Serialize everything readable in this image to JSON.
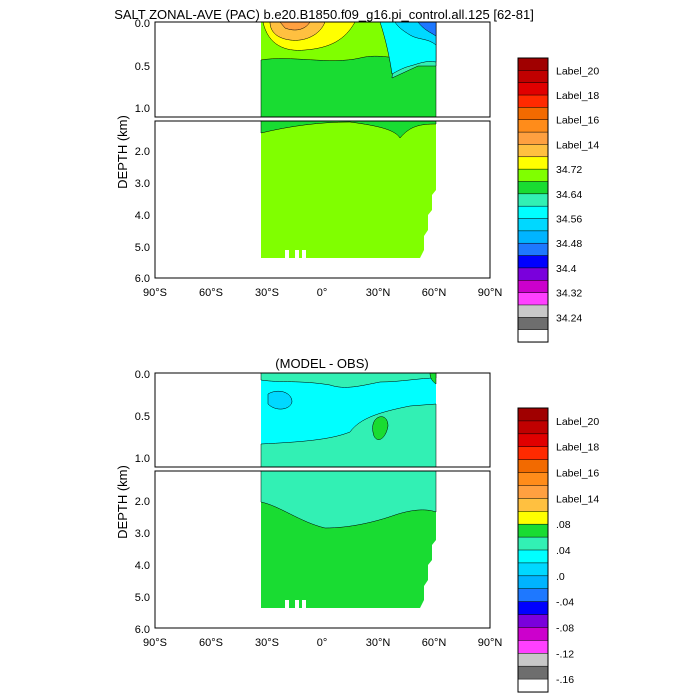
{
  "chart_data": [
    {
      "type": "contour",
      "title": "SALT ZONAL-AVE (PAC) b.e20.B1850.f09_g16.pi_control.all.125 [62-81]",
      "ylabel": "DEPTH (km)",
      "x_ticks": [
        "90°S",
        "60°S",
        "30°S",
        "0°",
        "30°N",
        "60°N",
        "90°N"
      ],
      "xlim": [
        -90,
        90
      ],
      "upper_panel": {
        "ylim": [
          0.0,
          1.1
        ],
        "y_ticks": [
          "0.0",
          "0.5",
          "1.0"
        ]
      },
      "lower_panel": {
        "ylim": [
          1.1,
          6.0
        ],
        "y_ticks": [
          "2.0",
          "3.0",
          "4.0",
          "5.0",
          "6.0"
        ]
      },
      "colorbar": {
        "labels": [
          "Label_20",
          "Label_18",
          "Label_16",
          "Label_14",
          "34.72",
          "34.64",
          "34.56",
          "34.48",
          "34.4",
          "34.32",
          "34.24"
        ],
        "colors": [
          "#a00000",
          "#c00000",
          "#e00000",
          "#ff2a00",
          "#f26a00",
          "#ff8c1a",
          "#ffa040",
          "#ffc040",
          "#ffff00",
          "#80ff00",
          "#19dc32",
          "#32f0b4",
          "#00ffff",
          "#00d8ff",
          "#00b4ff",
          "#1e78ff",
          "#0000ff",
          "#7a00dc",
          "#cc00cc",
          "#ff40ff",
          "#c8c8c8",
          "#6e6e6e",
          "#ffffff"
        ]
      },
      "ocean_extent_lat": [
        -33,
        61
      ],
      "background_color": "#80ff00"
    },
    {
      "type": "contour",
      "title": "(MODEL - OBS)",
      "ylabel": "DEPTH (km)",
      "x_ticks": [
        "90°S",
        "60°S",
        "30°S",
        "0°",
        "30°N",
        "60°N",
        "90°N"
      ],
      "xlim": [
        -90,
        90
      ],
      "upper_panel": {
        "ylim": [
          0.0,
          1.1
        ],
        "y_ticks": [
          "0.0",
          "0.5",
          "1.0"
        ]
      },
      "lower_panel": {
        "ylim": [
          1.1,
          6.0
        ],
        "y_ticks": [
          "2.0",
          "3.0",
          "4.0",
          "5.0",
          "6.0"
        ]
      },
      "colorbar": {
        "labels": [
          "Label_20",
          "Label_18",
          "Label_16",
          "Label_14",
          ".08",
          ".04",
          ".0",
          "-.04",
          "-.08",
          "-.12",
          "-.16"
        ],
        "colors": [
          "#a00000",
          "#c00000",
          "#e00000",
          "#ff2a00",
          "#f26a00",
          "#ff8c1a",
          "#ffa040",
          "#ffc040",
          "#ffff00",
          "#19dc32",
          "#32f0b4",
          "#00ffff",
          "#00d8ff",
          "#00b4ff",
          "#1e78ff",
          "#0000ff",
          "#7a00dc",
          "#cc00cc",
          "#ff40ff",
          "#c8c8c8",
          "#6e6e6e",
          "#ffffff"
        ]
      },
      "ocean_extent_lat": [
        -33,
        61
      ],
      "background_color": "#19dc32"
    }
  ]
}
